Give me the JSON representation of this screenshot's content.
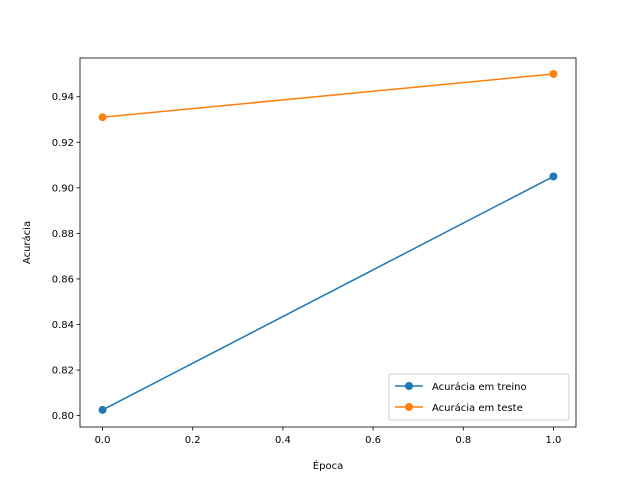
{
  "chart_data": {
    "type": "line",
    "title": "",
    "xlabel": "Época",
    "ylabel": "Acurácia",
    "xlim": [
      -0.05,
      1.05
    ],
    "ylim": [
      0.795,
      0.957
    ],
    "xticks": [
      0.0,
      0.2,
      0.4,
      0.6,
      0.8,
      1.0
    ],
    "xtick_labels": [
      "0.0",
      "0.2",
      "0.4",
      "0.6",
      "0.8",
      "1.0"
    ],
    "yticks": [
      0.8,
      0.82,
      0.84,
      0.86,
      0.88,
      0.9,
      0.92,
      0.94
    ],
    "ytick_labels": [
      "0.80",
      "0.82",
      "0.84",
      "0.86",
      "0.88",
      "0.90",
      "0.92",
      "0.94"
    ],
    "grid": false,
    "legend_position": "bottom-right",
    "x": [
      0,
      1
    ],
    "series": [
      {
        "name": "Acurácia em treino",
        "values": [
          0.8025,
          0.905
        ],
        "color": "#1f77b4",
        "marker": "circle"
      },
      {
        "name": "Acurácia em teste",
        "values": [
          0.931,
          0.95
        ],
        "color": "#ff7f0e",
        "marker": "circle"
      }
    ]
  }
}
